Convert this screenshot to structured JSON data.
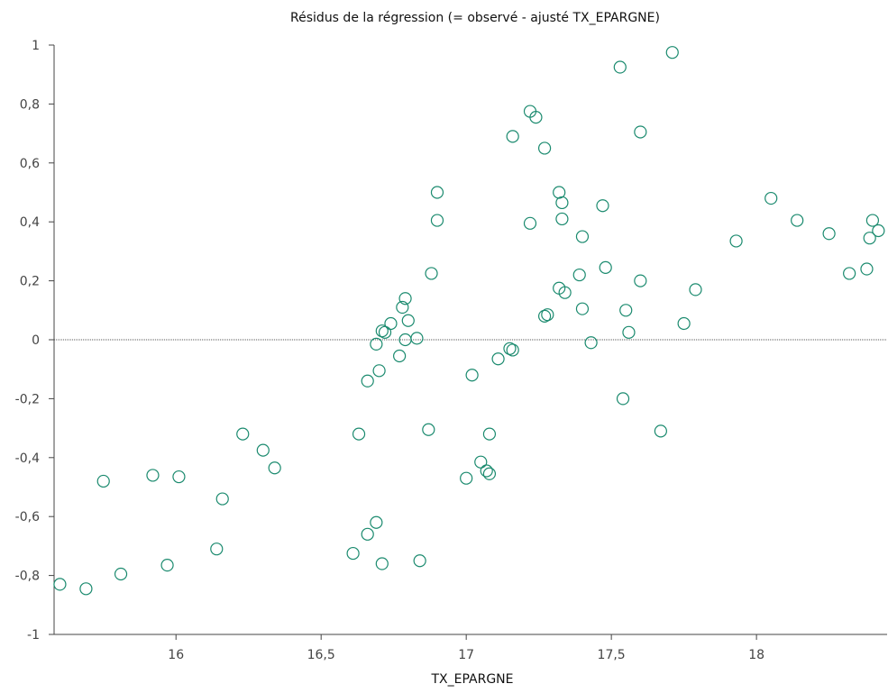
{
  "chart_data": {
    "type": "scatter",
    "title": "Résidus de la régression (= observé - ajusté TX_EPARGNE)",
    "xlabel": "TX_EPARGNE",
    "ylabel": "",
    "xlim": [
      15.58,
      18.45
    ],
    "ylim": [
      -1,
      1
    ],
    "x_ticks": [
      16,
      16.5,
      17,
      17.5,
      18
    ],
    "x_tick_labels": [
      "16",
      "16,5",
      "17",
      "17,5",
      "18"
    ],
    "y_ticks": [
      1,
      0.8,
      0.6,
      0.4,
      0.2,
      0,
      -0.2,
      -0.4,
      -0.6,
      -0.8,
      -1
    ],
    "y_tick_labels": [
      "1",
      "0,8",
      "0,6",
      "0,4",
      "0,2",
      "0",
      "-0,2",
      "-0,4",
      "-0,6",
      "-0,8",
      "-1"
    ],
    "grid": false,
    "zero_line": true,
    "marker": "open-circle",
    "marker_color": "#1a8a6e",
    "points": [
      {
        "x": 15.6,
        "y": -0.83
      },
      {
        "x": 15.69,
        "y": -0.845
      },
      {
        "x": 15.75,
        "y": -0.48
      },
      {
        "x": 15.81,
        "y": -0.795
      },
      {
        "x": 15.92,
        "y": -0.46
      },
      {
        "x": 15.97,
        "y": -0.765
      },
      {
        "x": 16.01,
        "y": -0.465
      },
      {
        "x": 16.14,
        "y": -0.71
      },
      {
        "x": 16.16,
        "y": -0.54
      },
      {
        "x": 16.23,
        "y": -0.32
      },
      {
        "x": 16.3,
        "y": -0.375
      },
      {
        "x": 16.34,
        "y": -0.435
      },
      {
        "x": 16.61,
        "y": -0.725
      },
      {
        "x": 16.63,
        "y": -0.32
      },
      {
        "x": 16.66,
        "y": -0.66
      },
      {
        "x": 16.66,
        "y": -0.14
      },
      {
        "x": 16.69,
        "y": -0.62
      },
      {
        "x": 16.69,
        "y": -0.015
      },
      {
        "x": 16.7,
        "y": -0.105
      },
      {
        "x": 16.71,
        "y": 0.03
      },
      {
        "x": 16.71,
        "y": -0.76
      },
      {
        "x": 16.72,
        "y": 0.025
      },
      {
        "x": 16.74,
        "y": 0.055
      },
      {
        "x": 16.77,
        "y": -0.055
      },
      {
        "x": 16.78,
        "y": 0.11
      },
      {
        "x": 16.79,
        "y": 0.14
      },
      {
        "x": 16.79,
        "y": 0.0
      },
      {
        "x": 16.8,
        "y": 0.065
      },
      {
        "x": 16.83,
        "y": 0.005
      },
      {
        "x": 16.84,
        "y": -0.75
      },
      {
        "x": 16.87,
        "y": -0.305
      },
      {
        "x": 16.88,
        "y": 0.225
      },
      {
        "x": 16.9,
        "y": 0.405
      },
      {
        "x": 16.9,
        "y": 0.5
      },
      {
        "x": 17.0,
        "y": -0.47
      },
      {
        "x": 17.02,
        "y": -0.12
      },
      {
        "x": 17.05,
        "y": -0.415
      },
      {
        "x": 17.07,
        "y": -0.445
      },
      {
        "x": 17.08,
        "y": -0.455
      },
      {
        "x": 17.08,
        "y": -0.32
      },
      {
        "x": 17.11,
        "y": -0.065
      },
      {
        "x": 17.15,
        "y": -0.03
      },
      {
        "x": 17.16,
        "y": -0.035
      },
      {
        "x": 17.16,
        "y": 0.69
      },
      {
        "x": 17.22,
        "y": 0.775
      },
      {
        "x": 17.22,
        "y": 0.395
      },
      {
        "x": 17.24,
        "y": 0.755
      },
      {
        "x": 17.27,
        "y": 0.08
      },
      {
        "x": 17.28,
        "y": 0.085
      },
      {
        "x": 17.27,
        "y": 0.65
      },
      {
        "x": 17.32,
        "y": 0.5
      },
      {
        "x": 17.32,
        "y": 0.175
      },
      {
        "x": 17.33,
        "y": 0.465
      },
      {
        "x": 17.33,
        "y": 0.41
      },
      {
        "x": 17.34,
        "y": 0.16
      },
      {
        "x": 17.39,
        "y": 0.22
      },
      {
        "x": 17.4,
        "y": 0.35
      },
      {
        "x": 17.4,
        "y": 0.105
      },
      {
        "x": 17.43,
        "y": -0.01
      },
      {
        "x": 17.47,
        "y": 0.455
      },
      {
        "x": 17.48,
        "y": 0.245
      },
      {
        "x": 17.53,
        "y": 0.925
      },
      {
        "x": 17.54,
        "y": -0.2
      },
      {
        "x": 17.55,
        "y": 0.1
      },
      {
        "x": 17.56,
        "y": 0.025
      },
      {
        "x": 17.6,
        "y": 0.705
      },
      {
        "x": 17.6,
        "y": 0.2
      },
      {
        "x": 17.67,
        "y": -0.31
      },
      {
        "x": 17.71,
        "y": 0.975
      },
      {
        "x": 17.75,
        "y": 0.055
      },
      {
        "x": 17.79,
        "y": 0.17
      },
      {
        "x": 17.93,
        "y": 0.335
      },
      {
        "x": 18.05,
        "y": 0.48
      },
      {
        "x": 18.14,
        "y": 0.405
      },
      {
        "x": 18.25,
        "y": 0.36
      },
      {
        "x": 18.32,
        "y": 0.225
      },
      {
        "x": 18.38,
        "y": 0.24
      },
      {
        "x": 18.39,
        "y": 0.345
      },
      {
        "x": 18.4,
        "y": 0.405
      },
      {
        "x": 18.42,
        "y": 0.37
      }
    ]
  }
}
